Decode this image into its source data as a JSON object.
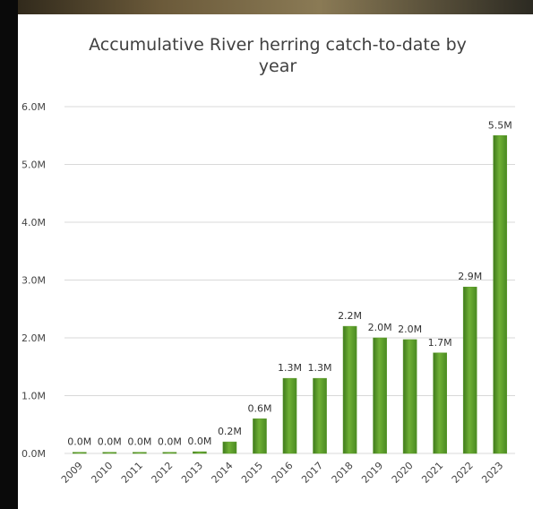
{
  "chart_data": {
    "type": "bar",
    "title": "Accumulative River herring catch-to-date by year",
    "categories": [
      "2009",
      "2010",
      "2011",
      "2012",
      "2013",
      "2014",
      "2015",
      "2016",
      "2017",
      "2018",
      "2019",
      "2020",
      "2021",
      "2022",
      "2023"
    ],
    "values": [
      0.02,
      0.02,
      0.02,
      0.02,
      0.03,
      0.2,
      0.6,
      1.3,
      1.3,
      2.2,
      2.0,
      1.97,
      1.74,
      2.88,
      5.5
    ],
    "value_labels": [
      "0.0M",
      "0.0M",
      "0.0M",
      "0.0M",
      "0.0M",
      "0.2M",
      "0.6M",
      "1.3M",
      "1.3M",
      "2.2M",
      "2.0M",
      "2.0M",
      "1.7M",
      "2.9M",
      "5.5M"
    ],
    "color": "#5a9a2a",
    "ylim": [
      0,
      6
    ],
    "yticks": [
      {
        "value": 0,
        "label": "0.0M"
      },
      {
        "value": 1,
        "label": "1.0M"
      },
      {
        "value": 2,
        "label": "2.0M"
      },
      {
        "value": 3,
        "label": "3.0M"
      },
      {
        "value": 4,
        "label": "4.0M"
      },
      {
        "value": 5,
        "label": "5.0M"
      },
      {
        "value": 6,
        "label": "6.0M"
      }
    ],
    "grid": true
  }
}
